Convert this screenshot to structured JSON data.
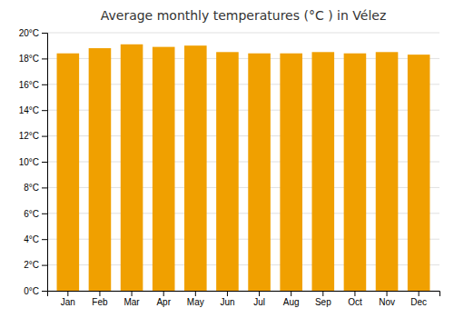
{
  "chart_data": {
    "type": "bar",
    "title": "Average monthly temperatures (°C ) in Vélez",
    "categories": [
      "Jan",
      "Feb",
      "Mar",
      "Apr",
      "May",
      "Jun",
      "Jul",
      "Aug",
      "Sep",
      "Oct",
      "Nov",
      "Dec"
    ],
    "values": [
      18.4,
      18.8,
      19.1,
      18.9,
      19.0,
      18.5,
      18.4,
      18.4,
      18.5,
      18.4,
      18.5,
      18.3
    ],
    "color": "#F0A000",
    "ylim": [
      0,
      20
    ],
    "yticks": [
      {
        "value": 0,
        "label": "0°C"
      },
      {
        "value": 2,
        "label": "2°C"
      },
      {
        "value": 4,
        "label": "4°C"
      },
      {
        "value": 6,
        "label": "6°C"
      },
      {
        "value": 8,
        "label": "8°C"
      },
      {
        "value": 10,
        "label": "10°C"
      },
      {
        "value": 12,
        "label": "12°C"
      },
      {
        "value": 14,
        "label": "14°C"
      },
      {
        "value": 16,
        "label": "16°C"
      },
      {
        "value": 18,
        "label": "18°C"
      },
      {
        "value": 20,
        "label": "20°C"
      }
    ],
    "grid": true
  }
}
